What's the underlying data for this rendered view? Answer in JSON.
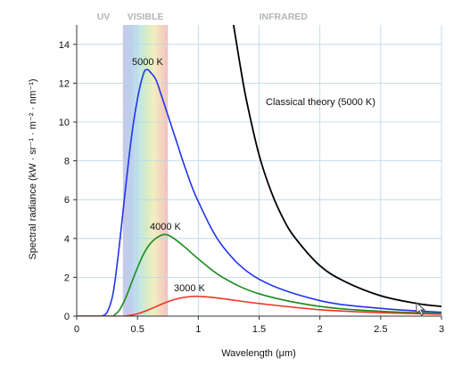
{
  "chart_data": {
    "type": "line",
    "xlabel": "Wavelength (μm)",
    "ylabel": "Spectral radiance (kW · sr⁻¹ · m⁻² · nm⁻¹)",
    "xlim": [
      0,
      3
    ],
    "ylim": [
      0,
      15
    ],
    "xticks": [
      0,
      0.5,
      1,
      1.5,
      2,
      2.5,
      3
    ],
    "xtick_labels": [
      "0",
      "0.5",
      "1",
      "1.5",
      "2",
      "2.5",
      "3"
    ],
    "yticks": [
      0,
      2,
      4,
      6,
      8,
      10,
      12,
      14
    ],
    "ytick_labels": [
      "0",
      "2",
      "4",
      "6",
      "8",
      "10",
      "12",
      "14"
    ],
    "grid": true,
    "bands": [
      {
        "name": "UV",
        "label": "UV",
        "range": [
          0,
          0.38
        ]
      },
      {
        "name": "VISIBLE",
        "label": "VISIBLE",
        "range": [
          0.38,
          0.75
        ]
      },
      {
        "name": "INFRARED",
        "label": "INFRARED",
        "range": [
          0.75,
          3
        ]
      }
    ],
    "series": [
      {
        "name": "5000 K",
        "label": "5000 K",
        "color": "#2233ee",
        "x": [
          0.2,
          0.25,
          0.3,
          0.35,
          0.4,
          0.45,
          0.5,
          0.55,
          0.58,
          0.6,
          0.65,
          0.7,
          0.8,
          0.9,
          1.0,
          1.2,
          1.5,
          2.0,
          2.5,
          3.0
        ],
        "y": [
          0.0,
          0.2,
          1.2,
          3.6,
          6.5,
          9.2,
          11.2,
          12.5,
          12.7,
          12.6,
          12.2,
          11.3,
          9.4,
          7.5,
          5.9,
          3.6,
          1.9,
          0.8,
          0.4,
          0.2
        ]
      },
      {
        "name": "4000 K",
        "label": "4000 K",
        "color": "#1a8c1a",
        "x": [
          0.3,
          0.35,
          0.4,
          0.45,
          0.5,
          0.55,
          0.6,
          0.65,
          0.7,
          0.725,
          0.75,
          0.8,
          0.9,
          1.0,
          1.2,
          1.5,
          2.0,
          2.5,
          3.0
        ],
        "y": [
          0.0,
          0.3,
          0.9,
          1.7,
          2.5,
          3.2,
          3.7,
          4.0,
          4.18,
          4.2,
          4.18,
          4.0,
          3.5,
          2.95,
          2.0,
          1.15,
          0.5,
          0.25,
          0.14
        ]
      },
      {
        "name": "3000 K",
        "label": "3000 K",
        "color": "#ee3322",
        "x": [
          0.4,
          0.5,
          0.6,
          0.7,
          0.8,
          0.9,
          0.97,
          1.05,
          1.2,
          1.5,
          2.0,
          2.5,
          3.0
        ],
        "y": [
          0.0,
          0.12,
          0.35,
          0.62,
          0.85,
          0.98,
          1.02,
          1.0,
          0.9,
          0.65,
          0.33,
          0.18,
          0.1
        ]
      },
      {
        "name": "Classical theory (5000 K)",
        "label": "Classical theory (5000 K)",
        "color": "#000000",
        "x": [
          1.29,
          1.35,
          1.4,
          1.5,
          1.6,
          1.7,
          1.8,
          2.0,
          2.2,
          2.5,
          2.8,
          3.0
        ],
        "y": [
          15.0,
          12.7,
          11.0,
          8.3,
          6.4,
          5.0,
          4.0,
          2.6,
          1.8,
          1.05,
          0.65,
          0.5
        ]
      }
    ]
  }
}
